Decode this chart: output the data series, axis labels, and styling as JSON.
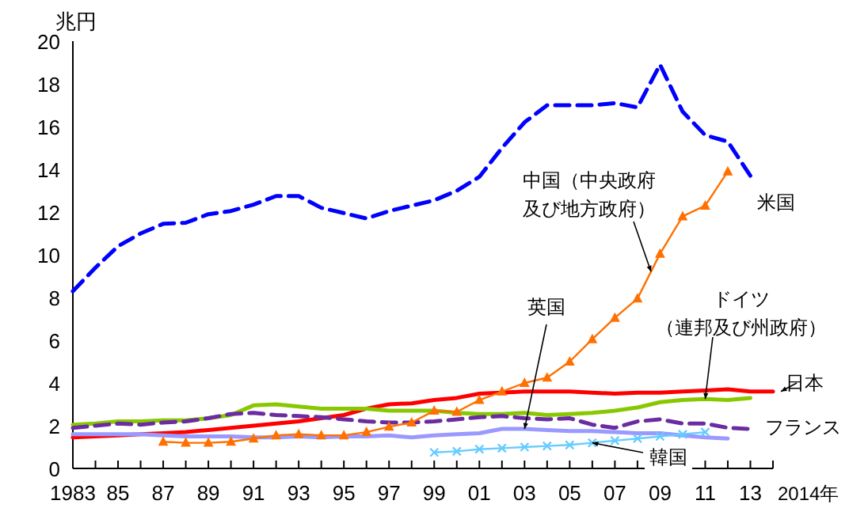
{
  "chart_data": {
    "type": "line",
    "ylabel": "兆円",
    "xlabel": "2014年",
    "xlim": [
      1983,
      2014
    ],
    "ylim": [
      0,
      20
    ],
    "yticks": [
      0,
      2,
      4,
      6,
      8,
      10,
      12,
      14,
      16,
      18,
      20
    ],
    "xticks": [
      {
        "value": 1983,
        "label": "1983"
      },
      {
        "value": 1984,
        "label": null
      },
      {
        "value": 1985,
        "label": "85"
      },
      {
        "value": 1986,
        "label": null
      },
      {
        "value": 1987,
        "label": "87"
      },
      {
        "value": 1988,
        "label": null
      },
      {
        "value": 1989,
        "label": "89"
      },
      {
        "value": 1990,
        "label": null
      },
      {
        "value": 1991,
        "label": "91"
      },
      {
        "value": 1992,
        "label": null
      },
      {
        "value": 1993,
        "label": "93"
      },
      {
        "value": 1994,
        "label": null
      },
      {
        "value": 1995,
        "label": "95"
      },
      {
        "value": 1996,
        "label": null
      },
      {
        "value": 1997,
        "label": "97"
      },
      {
        "value": 1998,
        "label": null
      },
      {
        "value": 1999,
        "label": "99"
      },
      {
        "value": 2000,
        "label": null
      },
      {
        "value": 2001,
        "label": "01"
      },
      {
        "value": 2002,
        "label": null
      },
      {
        "value": 2003,
        "label": "03"
      },
      {
        "value": 2004,
        "label": null
      },
      {
        "value": 2005,
        "label": "05"
      },
      {
        "value": 2006,
        "label": null
      },
      {
        "value": 2007,
        "label": "07"
      },
      {
        "value": 2008,
        "label": null
      },
      {
        "value": 2009,
        "label": "09"
      },
      {
        "value": 2010,
        "label": null
      },
      {
        "value": 2011,
        "label": "11"
      },
      {
        "value": 2012,
        "label": null
      },
      {
        "value": 2013,
        "label": "13"
      },
      {
        "value": 2014,
        "label": null
      }
    ],
    "series": [
      {
        "name": "米国",
        "color": "#0000ff",
        "line_style": "dashed",
        "marker": "none",
        "x": [
          1983,
          1984,
          1985,
          1986,
          1987,
          1988,
          1989,
          1990,
          1991,
          1992,
          1993,
          1994,
          1995,
          1996,
          1997,
          1998,
          1999,
          2000,
          2001,
          2002,
          2003,
          2004,
          2005,
          2006,
          2007,
          2008,
          2009,
          2010,
          2011,
          2012,
          2013
        ],
        "values": [
          8.3,
          9.4,
          10.4,
          11.0,
          11.45,
          11.5,
          11.9,
          12.05,
          12.35,
          12.75,
          12.75,
          12.2,
          11.95,
          11.7,
          12.05,
          12.3,
          12.55,
          13.0,
          13.65,
          15.0,
          16.2,
          17.0,
          17.0,
          17.0,
          17.1,
          16.9,
          18.9,
          16.7,
          15.6,
          15.3,
          13.7
        ]
      },
      {
        "name": "中国（中央政府及び地方政府）",
        "color": "#ff7000",
        "line_style": "solid",
        "marker": "triangle",
        "x": [
          1987,
          1988,
          1989,
          1990,
          1991,
          1992,
          1993,
          1994,
          1995,
          1996,
          1997,
          1998,
          1999,
          2000,
          2001,
          2002,
          2003,
          2004,
          2005,
          2006,
          2007,
          2008,
          2009,
          2010,
          2011,
          2012
        ],
        "values": [
          1.25,
          1.2,
          1.2,
          1.25,
          1.4,
          1.55,
          1.6,
          1.55,
          1.55,
          1.7,
          1.95,
          2.15,
          2.7,
          2.65,
          3.2,
          3.6,
          4.0,
          4.25,
          5.0,
          6.05,
          7.05,
          7.95,
          10.05,
          11.8,
          12.3,
          13.9
        ]
      },
      {
        "name": "日本",
        "color": "#ff0000",
        "line_style": "solid",
        "marker": "none",
        "x": [
          1983,
          1984,
          1985,
          1986,
          1987,
          1988,
          1989,
          1990,
          1991,
          1992,
          1993,
          1994,
          1995,
          1996,
          1997,
          1998,
          1999,
          2000,
          2001,
          2002,
          2003,
          2004,
          2005,
          2006,
          2007,
          2008,
          2009,
          2010,
          2011,
          2012,
          2013,
          2014
        ],
        "values": [
          1.45,
          1.5,
          1.55,
          1.6,
          1.65,
          1.7,
          1.8,
          1.9,
          2.0,
          2.1,
          2.2,
          2.35,
          2.5,
          2.8,
          3.0,
          3.05,
          3.2,
          3.3,
          3.5,
          3.55,
          3.6,
          3.6,
          3.6,
          3.55,
          3.5,
          3.55,
          3.55,
          3.6,
          3.65,
          3.7,
          3.6,
          3.6
        ]
      },
      {
        "name": "ドイツ（連邦及び州政府）",
        "color": "#88c800",
        "line_style": "solid",
        "marker": "none",
        "x": [
          1983,
          1984,
          1985,
          1986,
          1987,
          1988,
          1989,
          1990,
          1991,
          1992,
          1993,
          1994,
          1995,
          1996,
          1997,
          1998,
          1999,
          2000,
          2001,
          2002,
          2003,
          2004,
          2005,
          2006,
          2007,
          2008,
          2009,
          2010,
          2011,
          2012,
          2013
        ],
        "values": [
          2.05,
          2.1,
          2.2,
          2.2,
          2.25,
          2.25,
          2.35,
          2.5,
          2.95,
          3.0,
          2.9,
          2.8,
          2.8,
          2.8,
          2.7,
          2.7,
          2.7,
          2.6,
          2.55,
          2.55,
          2.6,
          2.5,
          2.55,
          2.6,
          2.7,
          2.85,
          3.1,
          3.2,
          3.25,
          3.2,
          3.3
        ]
      },
      {
        "name": "フランス",
        "color": "#6a2ca0",
        "line_style": "dashed",
        "marker": "none",
        "x": [
          1983,
          1984,
          1985,
          1986,
          1987,
          1988,
          1989,
          1990,
          1991,
          1992,
          1993,
          1994,
          1995,
          1996,
          1997,
          1998,
          1999,
          2000,
          2001,
          2002,
          2003,
          2004,
          2005,
          2006,
          2007,
          2008,
          2009,
          2010,
          2011,
          2012,
          2013
        ],
        "values": [
          1.9,
          2.0,
          2.1,
          2.05,
          2.15,
          2.2,
          2.35,
          2.55,
          2.6,
          2.5,
          2.45,
          2.4,
          2.3,
          2.2,
          2.15,
          2.15,
          2.2,
          2.3,
          2.4,
          2.45,
          2.35,
          2.3,
          2.35,
          2.05,
          1.9,
          2.2,
          2.3,
          2.1,
          2.1,
          1.9,
          1.85
        ]
      },
      {
        "name": "英国",
        "color": "#9999ff",
        "line_style": "solid",
        "marker": "none",
        "x": [
          1983,
          1984,
          1985,
          1986,
          1987,
          1988,
          1989,
          1990,
          1991,
          1992,
          1993,
          1994,
          1995,
          1996,
          1997,
          1998,
          1999,
          2000,
          2001,
          2002,
          2003,
          2004,
          2005,
          2006,
          2007,
          2008,
          2009,
          2010,
          2011,
          2012
        ],
        "values": [
          1.6,
          1.6,
          1.6,
          1.6,
          1.55,
          1.5,
          1.5,
          1.5,
          1.45,
          1.45,
          1.5,
          1.45,
          1.5,
          1.5,
          1.55,
          1.45,
          1.55,
          1.6,
          1.65,
          1.85,
          1.85,
          1.8,
          1.75,
          1.75,
          1.7,
          1.65,
          1.65,
          1.55,
          1.45,
          1.4
        ]
      },
      {
        "name": "韓国",
        "color": "#66ccff",
        "line_style": "solid",
        "marker": "cross",
        "x": [
          1999,
          2000,
          2001,
          2002,
          2003,
          2004,
          2005,
          2006,
          2007,
          2008,
          2009,
          2010,
          2011
        ],
        "values": [
          0.75,
          0.8,
          0.9,
          0.95,
          1.0,
          1.05,
          1.1,
          1.2,
          1.3,
          1.4,
          1.5,
          1.6,
          1.7
        ]
      }
    ]
  }
}
